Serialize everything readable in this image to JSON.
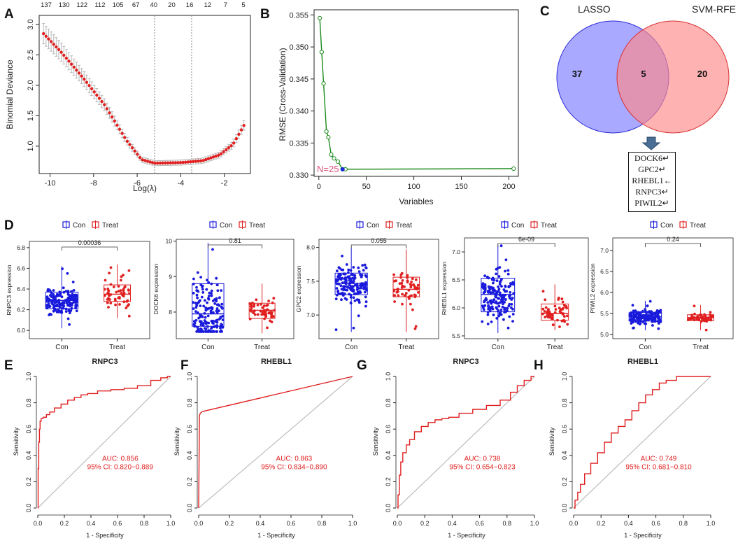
{
  "panels": {
    "A": {
      "letter": "A",
      "top_ticks": [
        "137",
        "130",
        "122",
        "112",
        "105",
        "67",
        "40",
        "20",
        "16",
        "12",
        "7",
        "5"
      ],
      "ylabel": "Binomial Deviance",
      "xlabel": "Log(λ)",
      "yticks": [
        "1.0",
        "1.5",
        "2.0",
        "2.5",
        "3.0"
      ],
      "xticks": [
        "-10",
        "-8",
        "-6",
        "-4",
        "-2"
      ]
    },
    "B": {
      "letter": "B",
      "ylabel": "RMSE (Cross-Validation)",
      "xlabel": "Variables",
      "annotation": "N=25",
      "yticks": [
        "0.330",
        "0.335",
        "0.340",
        "0.345",
        "0.350",
        "0.355"
      ],
      "xticks": [
        "0",
        "50",
        "100",
        "150",
        "200"
      ]
    },
    "C": {
      "letter": "C",
      "left_label": "LASSO",
      "right_label": "SVM-RFE",
      "left_only": "37",
      "overlap": "5",
      "right_only": "20",
      "genes": [
        "DOCK6↵",
        "GPC2↵",
        "RHEBL1←",
        "RNPC3↵",
        "PIWIL2↵"
      ]
    },
    "D": {
      "letter": "D",
      "legend_con": "Con",
      "legend_treat": "Treat",
      "x_con": "Con",
      "x_treat": "Treat"
    },
    "E": {
      "letter": "E"
    },
    "F": {
      "letter": "F"
    },
    "G": {
      "letter": "G"
    },
    "H": {
      "letter": "H"
    }
  },
  "colors": {
    "red": "#e02020",
    "blue": "#1a1adc",
    "green": "#1b8a1b",
    "venn_left": "#8c8cff",
    "venn_right": "#ff8888",
    "pink_text": "#e0507a"
  },
  "chart_data": [
    {
      "type": "line",
      "panel": "A",
      "title": "",
      "xlabel": "Log(λ)",
      "ylabel": "Binomial Deviance",
      "xlim": [
        -10.5,
        -0.8
      ],
      "ylim": [
        0.55,
        3.15
      ],
      "top_ticks": [
        "137",
        "130",
        "122",
        "112",
        "105",
        "67",
        "40",
        "20",
        "16",
        "12",
        "7",
        "5"
      ],
      "vlines": [
        -5.2,
        -3.5
      ],
      "curve": [
        [
          -10.3,
          2.85
        ],
        [
          -9.5,
          2.55
        ],
        [
          -8.5,
          2.13
        ],
        [
          -7.5,
          1.68
        ],
        [
          -6.5,
          1.1
        ],
        [
          -5.8,
          0.78
        ],
        [
          -5.2,
          0.72
        ],
        [
          -4,
          0.73
        ],
        [
          -3,
          0.76
        ],
        [
          -2.2,
          0.86
        ],
        [
          -1.6,
          1.03
        ],
        [
          -1.1,
          1.34
        ]
      ]
    },
    {
      "type": "line",
      "panel": "B",
      "title": "",
      "xlabel": "Variables",
      "ylabel": "RMSE (Cross-Validation)",
      "xlim": [
        -5,
        210
      ],
      "ylim": [
        0.3298,
        0.3558
      ],
      "x": [
        1,
        3,
        5,
        8,
        10,
        13,
        16,
        20,
        25,
        28,
        205
      ],
      "y": [
        0.3545,
        0.3492,
        0.3443,
        0.3368,
        0.3359,
        0.3332,
        0.3326,
        0.3321,
        0.3309,
        0.3309,
        0.331
      ],
      "selected": {
        "x": 25,
        "y": 0.3309,
        "label": "N=25"
      }
    },
    {
      "type": "box",
      "panel": "D",
      "title": "",
      "ylabel": "RNPC3 expression",
      "categories": [
        "Con",
        "Treat"
      ],
      "pvalue": "0.00036",
      "yticks": [
        "6.0",
        "6.2",
        "6.4",
        "6.6",
        "6.8"
      ],
      "ylim": [
        5.92,
        6.86
      ],
      "boxes": [
        {
          "min": 6.02,
          "q1": 6.21,
          "median": 6.29,
          "q3": 6.37,
          "max": 6.62
        },
        {
          "min": 6.12,
          "q1": 6.28,
          "median": 6.35,
          "q3": 6.44,
          "max": 6.64
        }
      ]
    },
    {
      "type": "box",
      "panel": "D",
      "title": "",
      "ylabel": "DOCK6 expression",
      "categories": [
        "Con",
        "Treat"
      ],
      "pvalue": "0.81",
      "yticks": [
        "8",
        "9",
        "10"
      ],
      "ylim": [
        7.25,
        10.05
      ],
      "boxes": [
        {
          "min": 7.45,
          "q1": 7.6,
          "median": 7.95,
          "q3": 8.8,
          "max": 9.95
        },
        {
          "min": 7.4,
          "q1": 7.82,
          "median": 8.05,
          "q3": 8.25,
          "max": 8.8
        }
      ]
    },
    {
      "type": "box",
      "panel": "D",
      "title": "",
      "ylabel": "GPC2 expression",
      "categories": [
        "Con",
        "Treat"
      ],
      "pvalue": "0.055",
      "yticks": [
        "7.0",
        "7.5",
        "8.0"
      ],
      "ylim": [
        6.65,
        8.12
      ],
      "boxes": [
        {
          "min": 6.75,
          "q1": 7.3,
          "median": 7.47,
          "q3": 7.62,
          "max": 8.0
        },
        {
          "min": 6.75,
          "q1": 7.27,
          "median": 7.38,
          "q3": 7.56,
          "max": 7.97
        }
      ]
    },
    {
      "type": "box",
      "panel": "D",
      "title": "",
      "ylabel": "RHEBL1 expression",
      "categories": [
        "Con",
        "Treat"
      ],
      "pvalue": "6e-09",
      "yticks": [
        "5.5",
        "6.0",
        "6.5",
        "7.0"
      ],
      "ylim": [
        5.45,
        7.25
      ],
      "boxes": [
        {
          "min": 5.55,
          "q1": 5.93,
          "median": 6.24,
          "q3": 6.53,
          "max": 7.12
        },
        {
          "min": 5.6,
          "q1": 5.78,
          "median": 5.9,
          "q3": 6.07,
          "max": 6.42
        }
      ]
    },
    {
      "type": "box",
      "panel": "D",
      "title": "",
      "ylabel": "PIWIL2 expression",
      "categories": [
        "Con",
        "Treat"
      ],
      "pvalue": "0.24",
      "yticks": [
        "5.0",
        "5.5",
        "6.0",
        "6.5",
        "7.0"
      ],
      "ylim": [
        4.9,
        7.3
      ],
      "boxes": [
        {
          "min": 5.1,
          "q1": 5.32,
          "median": 5.42,
          "q3": 5.52,
          "max": 5.8
        },
        {
          "min": 5.1,
          "q1": 5.33,
          "median": 5.4,
          "q3": 5.47,
          "max": 5.7
        }
      ]
    },
    {
      "type": "line",
      "panel": "E",
      "title": "RNPC3",
      "xlabel": "1 - Specificity",
      "ylabel": "Sensitivity",
      "auc": "AUC: 0.856",
      "ci": "95% CI: 0.820−0.889",
      "xticks": [
        "0.0",
        "0.2",
        "0.4",
        "0.6",
        "0.8",
        "1.0"
      ],
      "yticks": [
        "0.0",
        "0.2",
        "0.4",
        "0.6",
        "0.8",
        "1.0"
      ],
      "x": [
        0,
        0.005,
        0.01,
        0.015,
        0.02,
        0.03,
        0.05,
        0.08,
        0.1,
        0.15,
        0.2,
        0.25,
        0.3,
        0.35,
        0.4,
        0.5,
        0.6,
        0.7,
        0.8,
        0.9,
        0.95,
        1
      ],
      "y": [
        0,
        0.3,
        0.5,
        0.6,
        0.66,
        0.68,
        0.69,
        0.71,
        0.73,
        0.76,
        0.79,
        0.82,
        0.84,
        0.86,
        0.87,
        0.89,
        0.9,
        0.91,
        0.93,
        0.97,
        0.99,
        1
      ]
    },
    {
      "type": "line",
      "panel": "F",
      "title": "RHEBL1",
      "xlabel": "1 - Specificity",
      "ylabel": "Sensitivity",
      "auc": "AUC: 0.863",
      "ci": "95% CI: 0.834−0.890",
      "xticks": [
        "0.0",
        "0.2",
        "0.4",
        "0.6",
        "0.8",
        "1.0"
      ],
      "yticks": [
        "0.0",
        "0.2",
        "0.4",
        "0.6",
        "0.8",
        "1.0"
      ],
      "x": [
        0,
        0.005,
        0.01,
        0.02,
        0.03,
        1
      ],
      "y": [
        0,
        0.7,
        0.72,
        0.73,
        0.735,
        1
      ]
    },
    {
      "type": "line",
      "panel": "G",
      "title": "RNPC3",
      "xlabel": "1 - Specificity",
      "ylabel": "Sensitivity",
      "auc": "AUC: 0.738",
      "ci": "95% CI: 0.654−0.823",
      "xticks": [
        "0.0",
        "0.2",
        "0.4",
        "0.6",
        "0.8",
        "1.0"
      ],
      "yticks": [
        "0.0",
        "0.2",
        "0.4",
        "0.6",
        "0.8",
        "1.0"
      ],
      "x": [
        0,
        0.01,
        0.02,
        0.03,
        0.05,
        0.08,
        0.1,
        0.15,
        0.2,
        0.25,
        0.3,
        0.35,
        0.4,
        0.5,
        0.6,
        0.7,
        0.8,
        0.85,
        0.9,
        0.95,
        1
      ],
      "y": [
        0,
        0.1,
        0.25,
        0.35,
        0.42,
        0.48,
        0.52,
        0.58,
        0.62,
        0.65,
        0.67,
        0.68,
        0.69,
        0.72,
        0.75,
        0.78,
        0.82,
        0.88,
        0.93,
        0.97,
        1
      ]
    },
    {
      "type": "line",
      "panel": "H",
      "title": "RHEBL1",
      "xlabel": "1 - Specificity",
      "ylabel": "Sensitivity",
      "auc": "AUC: 0.749",
      "ci": "95% CI: 0.681−0.810",
      "xticks": [
        "0.0",
        "0.2",
        "0.4",
        "0.6",
        "0.8",
        "1.0"
      ],
      "yticks": [
        "0.0",
        "0.2",
        "0.4",
        "0.6",
        "0.8",
        "1.0"
      ],
      "x": [
        0,
        0.02,
        0.04,
        0.06,
        0.1,
        0.15,
        0.2,
        0.25,
        0.3,
        0.35,
        0.4,
        0.45,
        0.5,
        0.55,
        0.6,
        0.65,
        0.7,
        0.8,
        1
      ],
      "y": [
        0,
        0.06,
        0.12,
        0.18,
        0.26,
        0.34,
        0.42,
        0.5,
        0.57,
        0.62,
        0.67,
        0.74,
        0.8,
        0.86,
        0.9,
        0.95,
        0.97,
        1,
        1
      ]
    }
  ]
}
